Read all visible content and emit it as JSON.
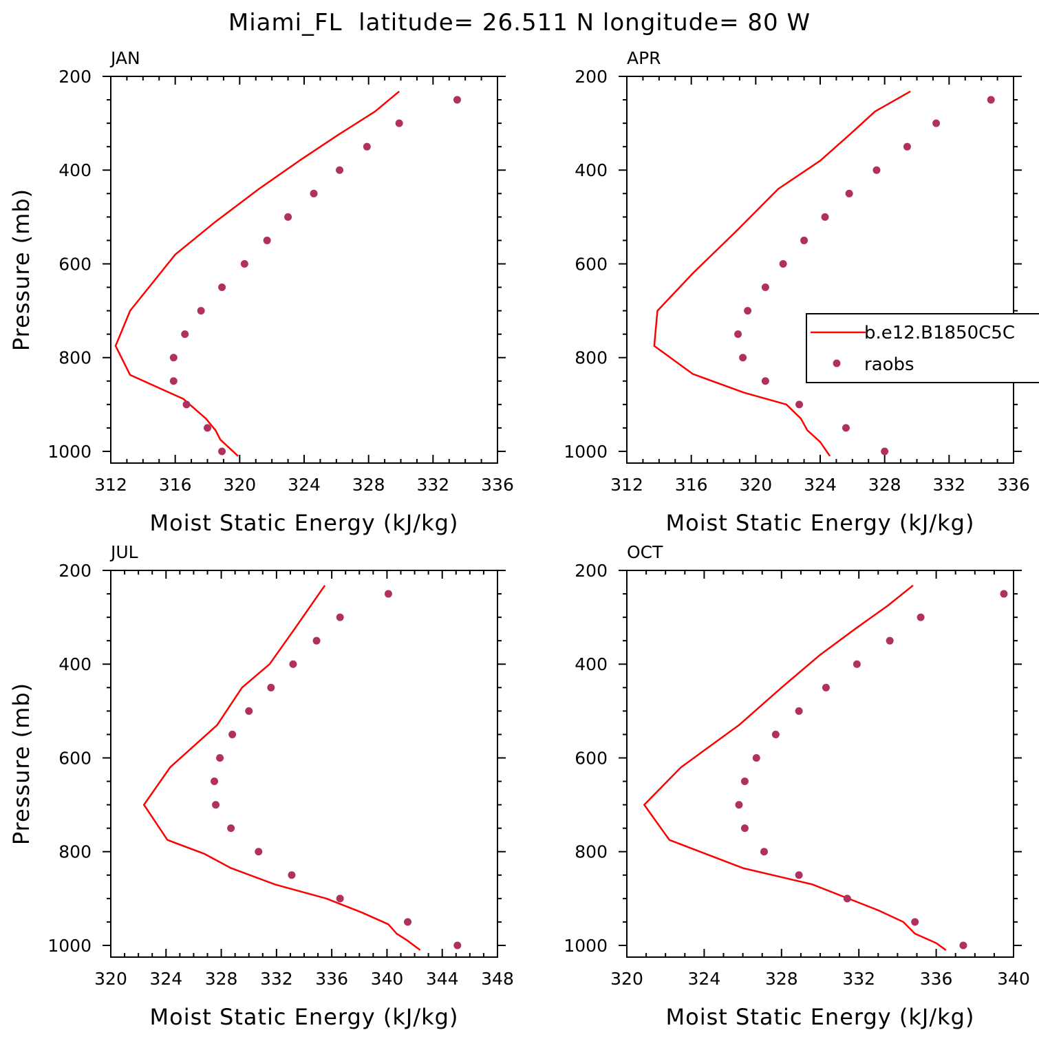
{
  "figure": {
    "title": "Miami_FL  latitude= 26.511 N longitude= 80 W"
  },
  "colors": {
    "model_line": "#ff0000",
    "raobs_marker": "#b03060",
    "axis": "#000000",
    "background": "#ffffff"
  },
  "legend": {
    "placement": "right side of APR panel (clipped by figure edge)",
    "entries": [
      {
        "label": "b.e12.B1850C5C",
        "style": "line",
        "color": "#ff0000"
      },
      {
        "label": "raobs",
        "style": "marker",
        "color": "#b03060"
      }
    ]
  },
  "chart_data": [
    {
      "type": "line",
      "panel_label": "JAN",
      "xlabel": "Moist Static Energy (kJ/kg)",
      "ylabel": "Pressure (mb)",
      "xlim": [
        312,
        336
      ],
      "xticks": [
        312,
        316,
        320,
        324,
        328,
        332,
        336
      ],
      "ylim": [
        1025,
        200
      ],
      "yticks": [
        200,
        400,
        600,
        800,
        1000
      ],
      "y_inverted": true,
      "series": [
        {
          "name": "b.e12.B1850C5C",
          "style": "line",
          "x": [
            329.9,
            328.4,
            326.1,
            323.7,
            321.2,
            318.5,
            316.0,
            313.2,
            312.3,
            313.2,
            316.5,
            317.9,
            318.5,
            318.8,
            319.9
          ],
          "y": [
            232,
            275,
            325,
            380,
            440,
            510,
            580,
            700,
            775,
            837,
            888,
            930,
            955,
            975,
            1010
          ]
        },
        {
          "name": "raobs",
          "style": "marker",
          "x": [
            333.5,
            329.9,
            327.9,
            326.2,
            324.6,
            323.0,
            321.7,
            320.3,
            318.9,
            317.6,
            316.6,
            315.9,
            315.9,
            316.7,
            318.0,
            318.9
          ],
          "y": [
            250,
            300,
            350,
            400,
            450,
            500,
            550,
            600,
            650,
            700,
            750,
            800,
            850,
            900,
            950,
            1000
          ]
        }
      ]
    },
    {
      "type": "line",
      "panel_label": "APR",
      "xlabel": "Moist Static Energy (kJ/kg)",
      "ylabel": "",
      "xlim": [
        312,
        336
      ],
      "xticks": [
        312,
        316,
        320,
        324,
        328,
        332,
        336
      ],
      "ylim": [
        1025,
        200
      ],
      "yticks": [
        200,
        400,
        600,
        800,
        1000
      ],
      "y_inverted": true,
      "series": [
        {
          "name": "b.e12.B1850C5C",
          "style": "line",
          "x": [
            329.6,
            327.4,
            325.8,
            324.0,
            321.4,
            318.8,
            316.1,
            313.9,
            313.7,
            316.1,
            319.3,
            321.9,
            322.8,
            323.2,
            324.0,
            324.6
          ],
          "y": [
            232,
            275,
            325,
            380,
            440,
            530,
            620,
            700,
            775,
            835,
            875,
            900,
            930,
            955,
            980,
            1010
          ]
        },
        {
          "name": "raobs",
          "style": "marker",
          "x": [
            334.6,
            331.2,
            329.4,
            327.5,
            325.8,
            324.3,
            323.0,
            321.7,
            320.6,
            319.5,
            318.9,
            319.2,
            320.6,
            322.7,
            325.6,
            328.0
          ],
          "y": [
            250,
            300,
            350,
            400,
            450,
            500,
            550,
            600,
            650,
            700,
            750,
            800,
            850,
            900,
            950,
            1000
          ]
        }
      ]
    },
    {
      "type": "line",
      "panel_label": "JUL",
      "xlabel": "Moist Static Energy (kJ/kg)",
      "ylabel": "Pressure (mb)",
      "xlim": [
        320,
        348
      ],
      "xticks": [
        320,
        324,
        328,
        332,
        336,
        340,
        344,
        348
      ],
      "ylim": [
        1025,
        200
      ],
      "yticks": [
        200,
        400,
        600,
        800,
        1000
      ],
      "y_inverted": true,
      "series": [
        {
          "name": "b.e12.B1850C5C",
          "style": "line",
          "x": [
            335.5,
            333.3,
            331.5,
            329.5,
            327.7,
            324.3,
            322.4,
            324.1,
            326.8,
            328.7,
            331.9,
            335.6,
            338.2,
            340.1,
            340.7,
            341.5,
            342.4
          ],
          "y": [
            232,
            325,
            400,
            450,
            530,
            620,
            700,
            775,
            805,
            835,
            870,
            900,
            930,
            955,
            975,
            990,
            1010
          ]
        },
        {
          "name": "raobs",
          "style": "marker",
          "x": [
            340.1,
            336.6,
            334.9,
            333.2,
            331.6,
            330.0,
            328.8,
            327.9,
            327.5,
            327.6,
            328.7,
            330.7,
            333.1,
            336.6,
            341.5,
            345.1
          ],
          "y": [
            250,
            300,
            350,
            400,
            450,
            500,
            550,
            600,
            650,
            700,
            750,
            800,
            850,
            900,
            950,
            1000
          ]
        }
      ]
    },
    {
      "type": "line",
      "panel_label": "OCT",
      "xlabel": "Moist Static Energy (kJ/kg)",
      "ylabel": "",
      "xlim": [
        320,
        340
      ],
      "xticks": [
        320,
        324,
        328,
        332,
        336,
        340
      ],
      "ylim": [
        1025,
        200
      ],
      "yticks": [
        200,
        400,
        600,
        800,
        1000
      ],
      "y_inverted": true,
      "series": [
        {
          "name": "b.e12.B1850C5C",
          "style": "line",
          "x": [
            334.8,
            333.5,
            331.8,
            330.0,
            328.0,
            325.8,
            322.8,
            320.9,
            322.2,
            326.0,
            329.6,
            333.0,
            334.3,
            334.9,
            336.0,
            336.5
          ],
          "y": [
            232,
            275,
            325,
            380,
            450,
            530,
            620,
            700,
            775,
            835,
            870,
            925,
            950,
            975,
            995,
            1010
          ]
        },
        {
          "name": "raobs",
          "style": "marker",
          "x": [
            339.5,
            335.2,
            333.6,
            331.9,
            330.3,
            328.9,
            327.7,
            326.7,
            326.1,
            325.8,
            326.1,
            327.1,
            328.9,
            331.4,
            334.9,
            337.4
          ],
          "y": [
            250,
            300,
            350,
            400,
            450,
            500,
            550,
            600,
            650,
            700,
            750,
            800,
            850,
            900,
            950,
            1000
          ]
        }
      ]
    }
  ]
}
